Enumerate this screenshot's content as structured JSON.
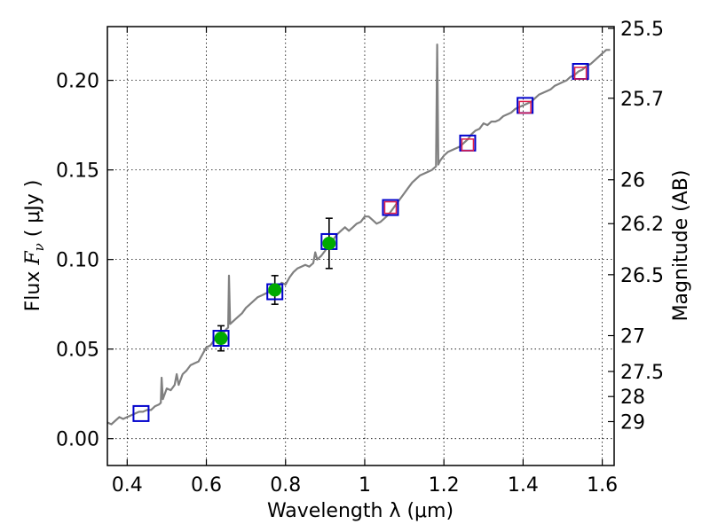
{
  "chart_data": {
    "type": "scatter",
    "xlabel": "Wavelength  λ (μm)",
    "ylabel": "Flux  F_ν ( μJy )",
    "ylabel2": "Magnitude (AB)",
    "xlim": [
      0.35,
      1.63
    ],
    "ylim": [
      -0.015,
      0.23
    ],
    "grid": true,
    "x_ticks": [
      0.4,
      0.6,
      0.8,
      1.0,
      1.2,
      1.4,
      1.6
    ],
    "x_tick_labels": [
      "0.4",
      "0.6",
      "0.8",
      "1",
      "1.2",
      "1.4",
      "1.6"
    ],
    "y_ticks": [
      0.0,
      0.05,
      0.1,
      0.15,
      0.2
    ],
    "y_tick_labels": [
      "0.00",
      "0.05",
      "0.10",
      "0.15",
      "0.20"
    ],
    "mag_ticks": [
      {
        "label": "25.5",
        "flux": 0.229
      },
      {
        "label": "25.7",
        "flux": 0.19
      },
      {
        "label": "26",
        "flux": 0.1445
      },
      {
        "label": "26.2",
        "flux": 0.12
      },
      {
        "label": "26.5",
        "flux": 0.0915
      },
      {
        "label": "27",
        "flux": 0.0575
      },
      {
        "label": "27.5",
        "flux": 0.0375
      },
      {
        "label": "28",
        "flux": 0.0235
      },
      {
        "label": "29",
        "flux": 0.0095
      }
    ],
    "series": [
      {
        "style": "line",
        "color": "#808080",
        "x": [
          0.35,
          0.36,
          0.37,
          0.38,
          0.39,
          0.4,
          0.41,
          0.42,
          0.43,
          0.44,
          0.45,
          0.46,
          0.47,
          0.48,
          0.485,
          0.487,
          0.49,
          0.5,
          0.51,
          0.52,
          0.525,
          0.53,
          0.54,
          0.55,
          0.56,
          0.57,
          0.58,
          0.59,
          0.6,
          0.61,
          0.62,
          0.63,
          0.64,
          0.65,
          0.655,
          0.657,
          0.66,
          0.67,
          0.68,
          0.69,
          0.7,
          0.71,
          0.72,
          0.73,
          0.74,
          0.75,
          0.76,
          0.77,
          0.78,
          0.79,
          0.8,
          0.81,
          0.82,
          0.83,
          0.84,
          0.85,
          0.86,
          0.87,
          0.875,
          0.88,
          0.89,
          0.9,
          0.91,
          0.92,
          0.93,
          0.94,
          0.95,
          0.96,
          0.97,
          0.98,
          0.99,
          1.0,
          1.01,
          1.02,
          1.03,
          1.04,
          1.05,
          1.06,
          1.07,
          1.08,
          1.09,
          1.1,
          1.11,
          1.12,
          1.13,
          1.14,
          1.15,
          1.16,
          1.17,
          1.18,
          1.183,
          1.186,
          1.19,
          1.2,
          1.21,
          1.22,
          1.23,
          1.24,
          1.25,
          1.26,
          1.27,
          1.28,
          1.29,
          1.3,
          1.31,
          1.32,
          1.33,
          1.34,
          1.35,
          1.36,
          1.37,
          1.38,
          1.39,
          1.4,
          1.41,
          1.42,
          1.43,
          1.44,
          1.45,
          1.46,
          1.47,
          1.48,
          1.49,
          1.5,
          1.51,
          1.52,
          1.53,
          1.54,
          1.55,
          1.56,
          1.57,
          1.58,
          1.59,
          1.6,
          1.61,
          1.62
        ],
        "y": [
          0.009,
          0.008,
          0.01,
          0.012,
          0.011,
          0.012,
          0.013,
          0.014,
          0.015,
          0.015,
          0.016,
          0.016,
          0.018,
          0.019,
          0.02,
          0.034,
          0.022,
          0.028,
          0.027,
          0.03,
          0.036,
          0.03,
          0.036,
          0.038,
          0.041,
          0.042,
          0.043,
          0.047,
          0.051,
          0.052,
          0.055,
          0.057,
          0.058,
          0.061,
          0.062,
          0.091,
          0.064,
          0.066,
          0.068,
          0.07,
          0.073,
          0.075,
          0.077,
          0.079,
          0.08,
          0.081,
          0.082,
          0.083,
          0.084,
          0.087,
          0.086,
          0.09,
          0.093,
          0.095,
          0.096,
          0.097,
          0.096,
          0.098,
          0.104,
          0.1,
          0.102,
          0.105,
          0.108,
          0.111,
          0.114,
          0.116,
          0.118,
          0.116,
          0.118,
          0.12,
          0.121,
          0.124,
          0.124,
          0.122,
          0.12,
          0.121,
          0.123,
          0.125,
          0.128,
          0.131,
          0.134,
          0.137,
          0.14,
          0.143,
          0.145,
          0.147,
          0.148,
          0.149,
          0.15,
          0.152,
          0.22,
          0.153,
          0.155,
          0.158,
          0.16,
          0.161,
          0.162,
          0.163,
          0.165,
          0.167,
          0.17,
          0.172,
          0.173,
          0.176,
          0.175,
          0.177,
          0.177,
          0.178,
          0.18,
          0.181,
          0.182,
          0.184,
          0.185,
          0.186,
          0.187,
          0.188,
          0.19,
          0.192,
          0.193,
          0.194,
          0.195,
          0.197,
          0.198,
          0.199,
          0.2,
          0.202,
          0.203,
          0.205,
          0.206,
          0.208,
          0.209,
          0.211,
          0.213,
          0.215,
          0.217,
          0.217
        ]
      },
      {
        "style": "open-square",
        "color": "#0000cc",
        "x": [
          0.435,
          0.637,
          0.773,
          0.91,
          1.065,
          1.26,
          1.405,
          1.545
        ],
        "y": [
          0.014,
          0.056,
          0.082,
          0.11,
          0.129,
          0.165,
          0.186,
          0.205
        ]
      },
      {
        "style": "open-square",
        "color": "#e0204a",
        "x": [
          1.065,
          1.26,
          1.405,
          1.545
        ],
        "y": [
          0.129,
          0.164,
          0.185,
          0.204
        ]
      },
      {
        "style": "filled-circle",
        "color": "#00aa00",
        "x": [
          0.637,
          0.773,
          0.91
        ],
        "y": [
          0.056,
          0.083,
          0.109
        ],
        "yerr": [
          0.007,
          0.008,
          0.014
        ]
      }
    ]
  }
}
